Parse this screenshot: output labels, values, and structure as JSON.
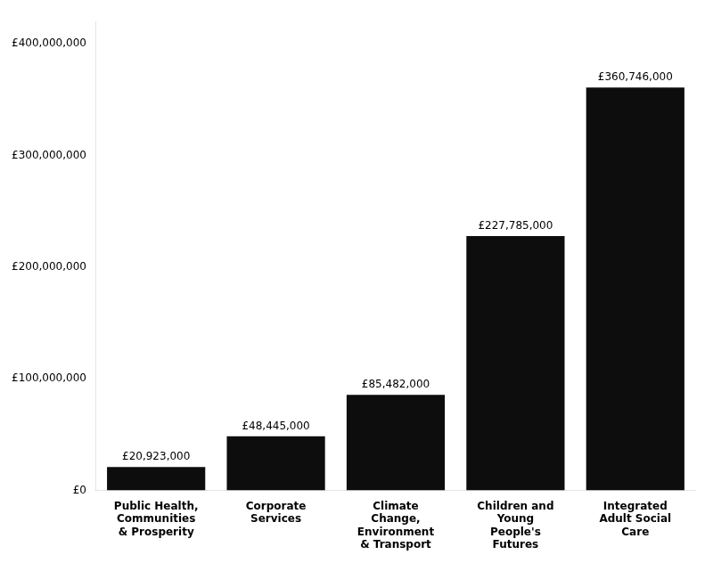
{
  "chart_data": {
    "type": "bar",
    "categories": [
      "Public Health,\nCommunities\n& Prosperity",
      "Corporate\nServices",
      "Climate\nChange,\nEnvironment\n& Transport",
      "Children and\nYoung\nPeople's\nFutures",
      "Integrated\nAdult Social\nCare"
    ],
    "values": [
      20923000,
      48445000,
      85482000,
      227785000,
      360746000
    ],
    "value_labels": [
      "£20,923,000",
      "£48,445,000",
      "£85,482,000",
      "£227,785,000",
      "£360,746,000"
    ],
    "data_labels": true,
    "color": "#0d0d0d",
    "ylim": [
      0,
      420000000
    ],
    "yticks": [
      {
        "value": 0,
        "label": "£0"
      },
      {
        "value": 100000000,
        "label": "£100,000,000"
      },
      {
        "value": 200000000,
        "label": "£200,000,000"
      },
      {
        "value": 300000000,
        "label": "£300,000,000"
      },
      {
        "value": 400000000,
        "label": "£400,000,000"
      }
    ],
    "grid": false
  }
}
